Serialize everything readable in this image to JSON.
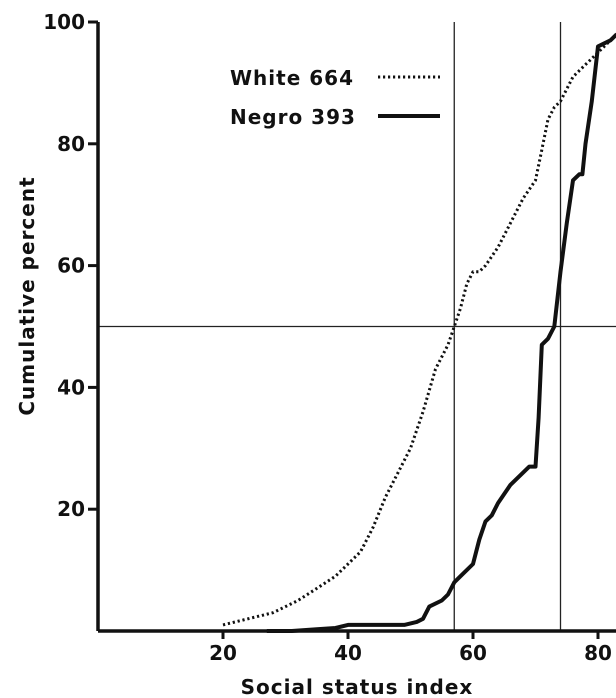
{
  "chart_data": {
    "type": "line",
    "xlabel": "Social status index",
    "ylabel": "Cumulative percent",
    "xlim": [
      0,
      83
    ],
    "ylim": [
      0,
      100
    ],
    "xticks": [
      "20",
      "40",
      "60",
      "80"
    ],
    "yticks": [
      "20",
      "40",
      "60",
      "80",
      "100"
    ],
    "grid": false,
    "legend_position": "top-left inside plot",
    "reference_lines": {
      "horizontal_y": 50,
      "vertical_x": [
        57,
        74
      ]
    },
    "series": [
      {
        "name": "White 664",
        "style": "dotted",
        "color": "#111111",
        "x": [
          20,
          24,
          28,
          32,
          35,
          38,
          40,
          42,
          44,
          46,
          48,
          50,
          52,
          54,
          56,
          57,
          58,
          59,
          60,
          61,
          62,
          64,
          66,
          68,
          70,
          71,
          72,
          73,
          74,
          76,
          78,
          80,
          82,
          83
        ],
        "y": [
          1,
          2,
          3,
          5,
          7,
          9,
          11,
          13,
          17,
          22,
          26,
          30,
          36,
          43,
          47,
          50,
          53,
          57,
          59,
          59,
          60,
          63,
          67,
          71,
          74,
          79,
          84,
          86,
          87,
          91,
          93,
          95,
          97,
          98
        ]
      },
      {
        "name": "Negro 393",
        "style": "solid",
        "color": "#111111",
        "x": [
          27,
          31,
          35,
          38,
          40,
          43,
          46,
          49,
          51,
          52,
          53,
          55,
          56,
          57,
          58,
          60,
          61,
          62,
          63,
          64,
          66,
          68,
          69,
          70,
          70.5,
          71,
          72,
          73,
          74,
          75,
          76,
          77,
          77.5,
          78,
          79,
          80,
          82,
          83
        ],
        "y": [
          0,
          0,
          0.3,
          0.5,
          1,
          1,
          1,
          1,
          1.5,
          2,
          4,
          5,
          6,
          8,
          9,
          11,
          15,
          18,
          19,
          21,
          24,
          26,
          27,
          27,
          35,
          47,
          48,
          50,
          59,
          67,
          74,
          75,
          75,
          80,
          87,
          96,
          97,
          98
        ]
      }
    ],
    "legend": [
      {
        "label": "White 664",
        "style": "dotted"
      },
      {
        "label": "Negro 393",
        "style": "solid"
      }
    ]
  }
}
